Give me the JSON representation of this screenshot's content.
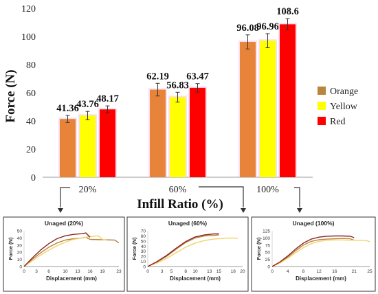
{
  "chart_data": [
    {
      "type": "bar",
      "categories": [
        "20%",
        "60%",
        "100%"
      ],
      "xlabel": "Infill Ratio (%)",
      "ylabel": "Force (N)",
      "ylim": [
        0,
        120
      ],
      "yticks": [
        0,
        20,
        40,
        60,
        80,
        100,
        120
      ],
      "grid": false,
      "legend": "right",
      "series": [
        {
          "name": "Orange",
          "color": "#e8833a",
          "values": [
            41.36,
            62.19,
            96.08
          ],
          "errors": [
            2.5,
            4.5,
            5.0
          ],
          "labels": [
            "41.36",
            "62.19",
            "96.08"
          ]
        },
        {
          "name": "Yellow",
          "color": "#ffff00",
          "values": [
            43.76,
            56.83,
            96.96
          ],
          "errors": [
            3.0,
            3.5,
            5.0
          ],
          "labels": [
            "43.76",
            "56.83",
            "96.96"
          ]
        },
        {
          "name": "Red",
          "color": "#ff0000",
          "values": [
            48.17,
            63.47,
            108.6
          ],
          "errors": [
            2.5,
            3.0,
            4.0
          ],
          "labels": [
            "48.17",
            "63.47",
            "108.6"
          ]
        }
      ]
    },
    {
      "type": "line",
      "title": "Unaged (20%)",
      "xlabel": "Displacement (mm)",
      "ylabel": "Force (N)",
      "xlim": [
        0,
        23
      ],
      "ylim": [
        0,
        50
      ],
      "xticks": [
        0,
        3,
        6,
        10,
        13,
        16,
        19,
        23
      ],
      "yticks": [
        0,
        10,
        20,
        30,
        40,
        50
      ],
      "series": [
        {
          "name": "Orange",
          "color": "#b8843e",
          "x": [
            0,
            2,
            4,
            6,
            8,
            10,
            12,
            14,
            15,
            16,
            22,
            23
          ],
          "y": [
            0,
            10,
            19,
            27,
            33,
            37,
            39,
            40,
            41,
            38,
            37,
            33
          ]
        },
        {
          "name": "Yellow",
          "color": "#f2d36a",
          "x": [
            0,
            2,
            4,
            6,
            8,
            10,
            12,
            14,
            16,
            18,
            19,
            20
          ],
          "y": [
            0,
            8,
            16,
            23,
            29,
            34,
            38,
            40,
            42,
            43,
            38,
            37
          ]
        },
        {
          "name": "Red",
          "color": "#8b2323",
          "x": [
            0,
            2,
            4,
            6,
            8,
            10,
            12,
            14,
            15,
            16
          ],
          "y": [
            0,
            12,
            23,
            32,
            39,
            43,
            45,
            46,
            47,
            41
          ]
        }
      ]
    },
    {
      "type": "line",
      "title": "Unaged (60%)",
      "xlabel": "Displacement (mm)",
      "ylabel": "Force (N)",
      "xlim": [
        0,
        20
      ],
      "ylim": [
        0,
        70
      ],
      "xticks": [
        0,
        3,
        5,
        8,
        10,
        13,
        15,
        18,
        20
      ],
      "yticks": [
        0,
        10,
        20,
        30,
        40,
        50,
        60,
        70
      ],
      "series": [
        {
          "name": "Orange",
          "color": "#b8843e",
          "x": [
            0,
            2,
            4,
            6,
            8,
            10,
            12,
            14,
            15
          ],
          "y": [
            0,
            9,
            20,
            34,
            47,
            56,
            60,
            61,
            62
          ]
        },
        {
          "name": "Yellow",
          "color": "#f2d36a",
          "x": [
            0,
            2,
            4,
            6,
            8,
            10,
            12,
            14,
            16,
            18,
            19
          ],
          "y": [
            0,
            7,
            16,
            27,
            38,
            46,
            51,
            54,
            55,
            56,
            55
          ]
        },
        {
          "name": "Red",
          "color": "#8b2323",
          "x": [
            0,
            2,
            4,
            6,
            8,
            10,
            12,
            14,
            15
          ],
          "y": [
            0,
            10,
            22,
            36,
            49,
            58,
            62,
            64,
            64
          ]
        }
      ]
    },
    {
      "type": "line",
      "title": "Unaged (100%)",
      "xlabel": "Displacement (mm)",
      "ylabel": "Force (N)",
      "xlim": [
        0,
        25
      ],
      "ylim": [
        0,
        125
      ],
      "xticks": [
        0,
        4,
        8,
        12,
        16,
        21,
        25
      ],
      "yticks": [
        0,
        25,
        50,
        75,
        100,
        125
      ],
      "series": [
        {
          "name": "Orange",
          "color": "#b8843e",
          "x": [
            0,
            2,
            4,
            6,
            8,
            10,
            12,
            14,
            16,
            18,
            20,
            21
          ],
          "y": [
            0,
            14,
            33,
            55,
            75,
            88,
            94,
            96,
            97,
            98,
            97,
            92
          ]
        },
        {
          "name": "Yellow",
          "color": "#f2d36a",
          "x": [
            0,
            2,
            4,
            6,
            8,
            10,
            12,
            14,
            16,
            18,
            20,
            22,
            24,
            25
          ],
          "y": [
            0,
            12,
            29,
            48,
            66,
            80,
            88,
            92,
            93,
            93,
            92,
            92,
            91,
            87
          ]
        },
        {
          "name": "Red",
          "color": "#8b2323",
          "x": [
            0,
            2,
            4,
            6,
            8,
            10,
            12,
            14,
            16,
            18,
            20,
            21
          ],
          "y": [
            0,
            16,
            37,
            61,
            82,
            96,
            103,
            106,
            107,
            107,
            106,
            101
          ]
        }
      ]
    }
  ]
}
